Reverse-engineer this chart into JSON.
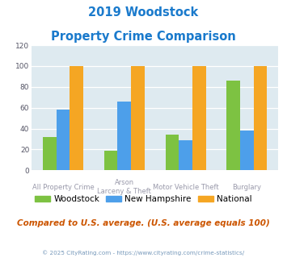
{
  "title_line1": "2019 Woodstock",
  "title_line2": "Property Crime Comparison",
  "cat_labels_top": [
    "All Property Crime",
    "Arson",
    "Motor Vehicle Theft",
    "Burglary"
  ],
  "cat_labels_bot": [
    "",
    "Larceny & Theft",
    "",
    ""
  ],
  "woodstock": [
    32,
    19,
    34,
    86
  ],
  "new_hampshire": [
    58,
    66,
    29,
    38
  ],
  "national": [
    100,
    100,
    100,
    100
  ],
  "colors": {
    "woodstock": "#7dc242",
    "new_hampshire": "#4d9fea",
    "national": "#f5a623"
  },
  "ylim": [
    0,
    120
  ],
  "yticks": [
    0,
    20,
    40,
    60,
    80,
    100,
    120
  ],
  "title_color": "#1a7acc",
  "fig_bg_color": "#ffffff",
  "plot_bg": "#deeaf0",
  "xlabel_color": "#9999aa",
  "footer_text": "Compared to U.S. average. (U.S. average equals 100)",
  "copyright_text": "© 2025 CityRating.com - https://www.cityrating.com/crime-statistics/",
  "legend_labels": [
    "Woodstock",
    "New Hampshire",
    "National"
  ],
  "bar_width": 0.22
}
